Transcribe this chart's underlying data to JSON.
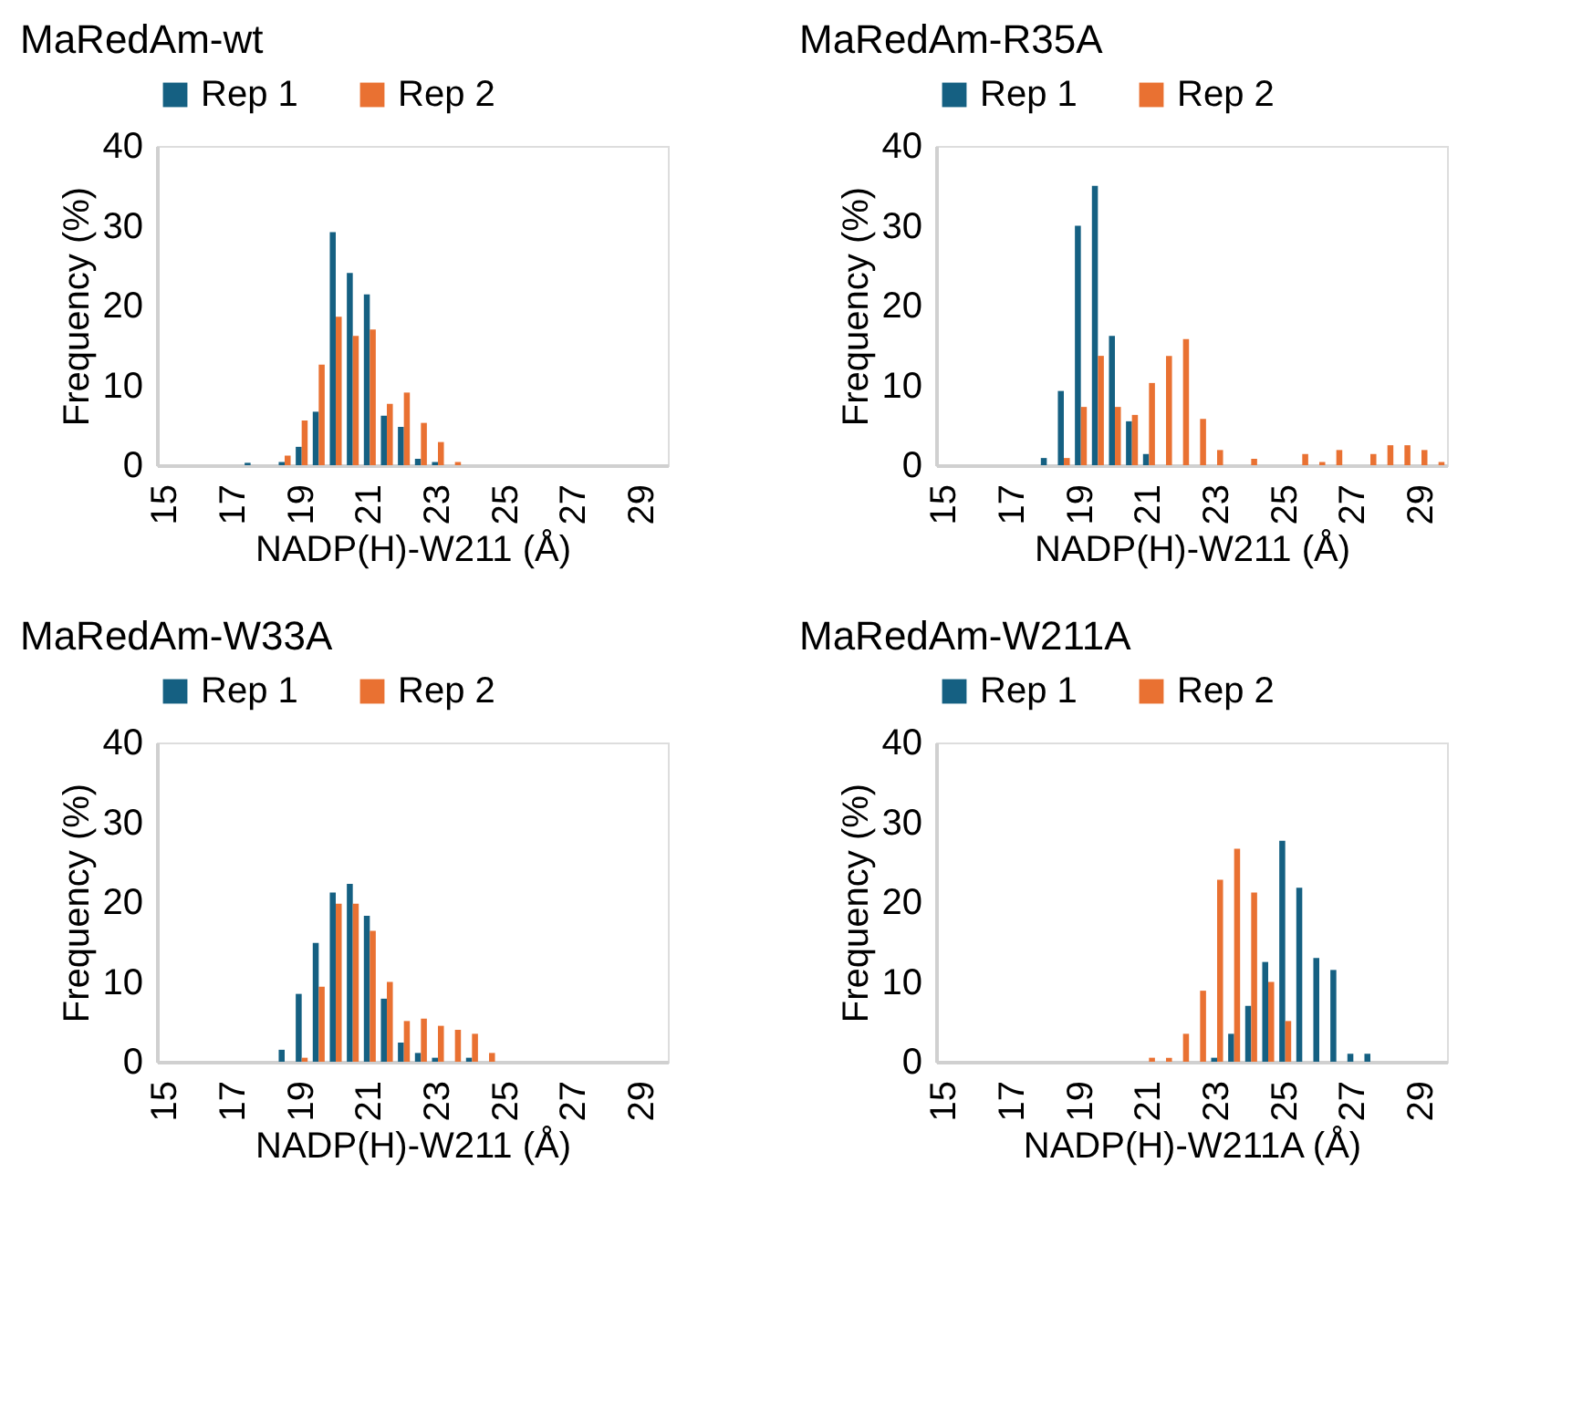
{
  "chart_data": [
    {
      "type": "bar",
      "title": "MaRedAm-wt",
      "xlabel": "NADP(H)-W211 (Å)",
      "ylabel": "Frequency (%)",
      "legend": "top",
      "ylim": [
        0,
        40
      ],
      "yticks": [
        0,
        10,
        20,
        30,
        40
      ],
      "categories": [
        "15",
        null,
        null,
        null,
        "17",
        null,
        null,
        null,
        "19",
        null,
        null,
        null,
        "21",
        null,
        null,
        null,
        "23",
        null,
        null,
        null,
        "25",
        null,
        null,
        null,
        "27",
        null,
        null,
        null,
        "29",
        null
      ],
      "series": [
        {
          "name": "Rep 1",
          "color": "#156082",
          "values": [
            null,
            null,
            null,
            null,
            null,
            0.3,
            null,
            0.4,
            2.3,
            6.7,
            29.2,
            24.1,
            21.4,
            6.2,
            4.8,
            0.8,
            0.4,
            null,
            null,
            null,
            null,
            null,
            null,
            null,
            null,
            null,
            null,
            null,
            null,
            null
          ]
        },
        {
          "name": "Rep 2",
          "color": "#e97132",
          "values": [
            null,
            null,
            null,
            null,
            null,
            null,
            null,
            1.2,
            5.6,
            12.6,
            18.6,
            16.2,
            17.0,
            7.7,
            9.1,
            5.3,
            2.9,
            0.4,
            null,
            null,
            null,
            null,
            null,
            null,
            null,
            null,
            null,
            null,
            null,
            null
          ]
        }
      ]
    },
    {
      "type": "bar",
      "title": "MaRedAm-R35A",
      "xlabel": "NADP(H)-W211 (Å)",
      "ylabel": "Frequency (%)",
      "legend": "top",
      "ylim": [
        0,
        40
      ],
      "yticks": [
        0,
        10,
        20,
        30,
        40
      ],
      "categories": [
        "15",
        null,
        null,
        null,
        "17",
        null,
        null,
        null,
        "19",
        null,
        null,
        null,
        "21",
        null,
        null,
        null,
        "23",
        null,
        null,
        null,
        "25",
        null,
        null,
        null,
        "27",
        null,
        null,
        null,
        "29",
        null
      ],
      "series": [
        {
          "name": "Rep 1",
          "color": "#156082",
          "values": [
            null,
            null,
            null,
            null,
            null,
            null,
            0.9,
            9.3,
            30.0,
            35.0,
            16.2,
            5.5,
            1.4,
            null,
            null,
            null,
            null,
            null,
            null,
            null,
            null,
            null,
            null,
            null,
            null,
            null,
            null,
            null,
            null,
            null
          ]
        },
        {
          "name": "Rep 2",
          "color": "#e97132",
          "values": [
            null,
            null,
            null,
            null,
            null,
            null,
            null,
            0.9,
            7.3,
            13.7,
            7.3,
            6.3,
            10.3,
            13.7,
            15.8,
            5.8,
            1.9,
            null,
            0.8,
            null,
            null,
            1.4,
            0.4,
            1.9,
            null,
            1.4,
            2.5,
            2.5,
            1.9,
            0.4
          ]
        }
      ]
    },
    {
      "type": "bar",
      "title": "MaRedAm-W33A",
      "xlabel": "NADP(H)-W211 (Å)",
      "ylabel": "Frequency (%)",
      "legend": "top",
      "ylim": [
        0,
        40
      ],
      "yticks": [
        0,
        10,
        20,
        30,
        40
      ],
      "categories": [
        "15",
        null,
        null,
        null,
        "17",
        null,
        null,
        null,
        "19",
        null,
        null,
        null,
        "21",
        null,
        null,
        null,
        "23",
        null,
        null,
        null,
        "25",
        null,
        null,
        null,
        "27",
        null,
        null,
        null,
        "29",
        null
      ],
      "series": [
        {
          "name": "Rep 1",
          "color": "#156082",
          "values": [
            null,
            null,
            null,
            null,
            null,
            null,
            null,
            1.5,
            8.5,
            14.9,
            21.2,
            22.3,
            18.3,
            7.9,
            2.4,
            1.1,
            0.5,
            null,
            0.5,
            null,
            null,
            null,
            null,
            null,
            null,
            null,
            null,
            null,
            null,
            null
          ]
        },
        {
          "name": "Rep 2",
          "color": "#e97132",
          "values": [
            null,
            null,
            null,
            null,
            null,
            null,
            null,
            null,
            0.5,
            9.4,
            19.8,
            19.8,
            16.4,
            10.0,
            5.1,
            5.4,
            4.5,
            4.0,
            3.5,
            1.1,
            null,
            null,
            null,
            null,
            null,
            null,
            null,
            null,
            null,
            null
          ]
        }
      ]
    },
    {
      "type": "bar",
      "title": "MaRedAm-W211A",
      "xlabel": "NADP(H)-W211A (Å)",
      "ylabel": "Frequency (%)",
      "legend": "top",
      "ylim": [
        0,
        40
      ],
      "yticks": [
        0,
        10,
        20,
        30,
        40
      ],
      "categories": [
        "15",
        null,
        null,
        null,
        "17",
        null,
        null,
        null,
        "19",
        null,
        null,
        null,
        "21",
        null,
        null,
        null,
        "23",
        null,
        null,
        null,
        "25",
        null,
        null,
        null,
        "27",
        null,
        null,
        null,
        "29",
        null
      ],
      "series": [
        {
          "name": "Rep 1",
          "color": "#156082",
          "values": [
            null,
            null,
            null,
            null,
            null,
            null,
            null,
            null,
            null,
            null,
            null,
            null,
            null,
            null,
            null,
            null,
            0.5,
            3.5,
            7.0,
            12.5,
            27.7,
            21.8,
            13.0,
            11.5,
            1.0,
            1.0,
            null,
            null,
            null,
            null
          ]
        },
        {
          "name": "Rep 2",
          "color": "#e97132",
          "values": [
            null,
            null,
            null,
            null,
            null,
            null,
            null,
            null,
            null,
            null,
            null,
            null,
            0.5,
            0.5,
            3.5,
            8.9,
            22.8,
            26.7,
            21.2,
            10.0,
            5.1,
            null,
            null,
            null,
            null,
            null,
            null,
            null,
            null,
            null
          ]
        }
      ]
    }
  ]
}
